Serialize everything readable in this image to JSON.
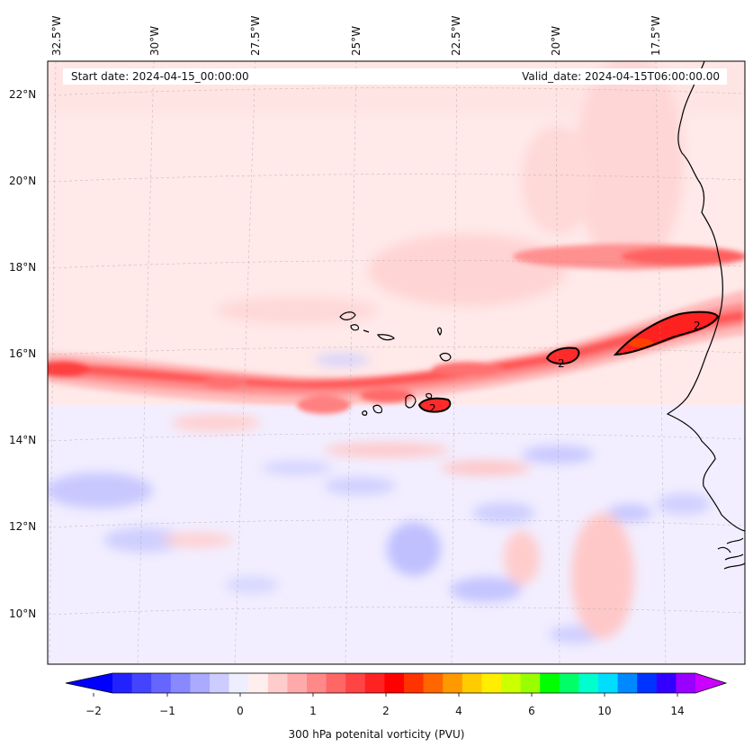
{
  "header": {
    "start_date": "Start date: 2024-04-15_00:00:00",
    "valid_date": "Valid_date: 2024-04-15T06:00:00.00"
  },
  "axes": {
    "lon_labels": [
      "32.5°W",
      "30°W",
      "27.5°W",
      "25°W",
      "22.5°W",
      "20°W",
      "17.5°W"
    ],
    "lat_labels": [
      "22°N",
      "20°N",
      "18°N",
      "16°N",
      "14°N",
      "12°N",
      "10°N"
    ]
  },
  "map": {
    "region": "Eastern tropical North Atlantic / Cape Verde",
    "extent": {
      "lon": [
        -33,
        -15.7
      ],
      "lat": [
        8.9,
        22.8
      ]
    },
    "contour_label": "2",
    "contour_labels": [
      "2",
      "2",
      "2"
    ],
    "features": [
      "coastline-west-africa",
      "cape-verde-islands",
      "pv-contour-2"
    ]
  },
  "colorbar": {
    "title": "300 hPa potenital vorticity (PVU)",
    "tick_labels": [
      "−2",
      "−1",
      "0",
      "1",
      "2",
      "4",
      "6",
      "10",
      "14"
    ],
    "colors": [
      "#0000ff",
      "#2222ff",
      "#4444ff",
      "#6666ff",
      "#8888ff",
      "#aaaaff",
      "#ccccff",
      "#eeeeff",
      "#ffeeee",
      "#ffcccc",
      "#ffaaaa",
      "#ff8888",
      "#ff6666",
      "#ff4444",
      "#ff2222",
      "#ff0000",
      "#ff3300",
      "#ff6600",
      "#ff9900",
      "#ffcc00",
      "#ffee00",
      "#ccff00",
      "#99ff00",
      "#00ff00",
      "#00ff66",
      "#00ffcc",
      "#00ddff",
      "#0088ff",
      "#0033ff",
      "#3300ff",
      "#9900ff",
      "#cc00ff"
    ]
  }
}
